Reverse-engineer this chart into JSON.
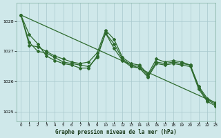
{
  "title": "Graphe pression niveau de la mer (hPa)",
  "background_color": "#cfe8ea",
  "grid_color": "#a8c8cc",
  "line_color": "#2d6a2d",
  "xlim": [
    -0.5,
    23
  ],
  "ylim": [
    1024.7,
    1028.6
  ],
  "yticks": [
    1025,
    1026,
    1027,
    1028
  ],
  "xticks": [
    0,
    1,
    2,
    3,
    4,
    5,
    6,
    7,
    8,
    9,
    10,
    11,
    12,
    13,
    14,
    15,
    16,
    17,
    18,
    19,
    20,
    21,
    22,
    23
  ],
  "trend_x": [
    0,
    23
  ],
  "trend_y": [
    1028.2,
    1025.3
  ],
  "line1_y": [
    1028.2,
    1027.2,
    1027.15,
    1027.0,
    1026.85,
    1026.75,
    1026.65,
    1026.6,
    1026.65,
    1026.95,
    1027.7,
    1027.4,
    1026.8,
    1026.6,
    1026.55,
    1026.25,
    1026.75,
    1026.65,
    1026.7,
    1026.65,
    1026.55,
    1025.85,
    1025.45,
    1025.3
  ],
  "line2_y": [
    1028.2,
    1027.3,
    1027.0,
    1026.95,
    1026.8,
    1026.65,
    1026.6,
    1026.55,
    1026.5,
    1026.8,
    1027.6,
    1027.25,
    1026.75,
    1026.55,
    1026.5,
    1026.2,
    1026.65,
    1026.6,
    1026.65,
    1026.6,
    1026.55,
    1025.8,
    1025.4,
    1025.25
  ],
  "line3_y": [
    1028.2,
    1027.55,
    1027.25,
    1026.85,
    1026.7,
    1026.6,
    1026.55,
    1026.45,
    1026.45,
    1026.85,
    1027.6,
    1027.1,
    1026.7,
    1026.5,
    1026.45,
    1026.15,
    1026.6,
    1026.55,
    1026.6,
    1026.55,
    1026.5,
    1025.75,
    1025.35,
    1025.2
  ]
}
